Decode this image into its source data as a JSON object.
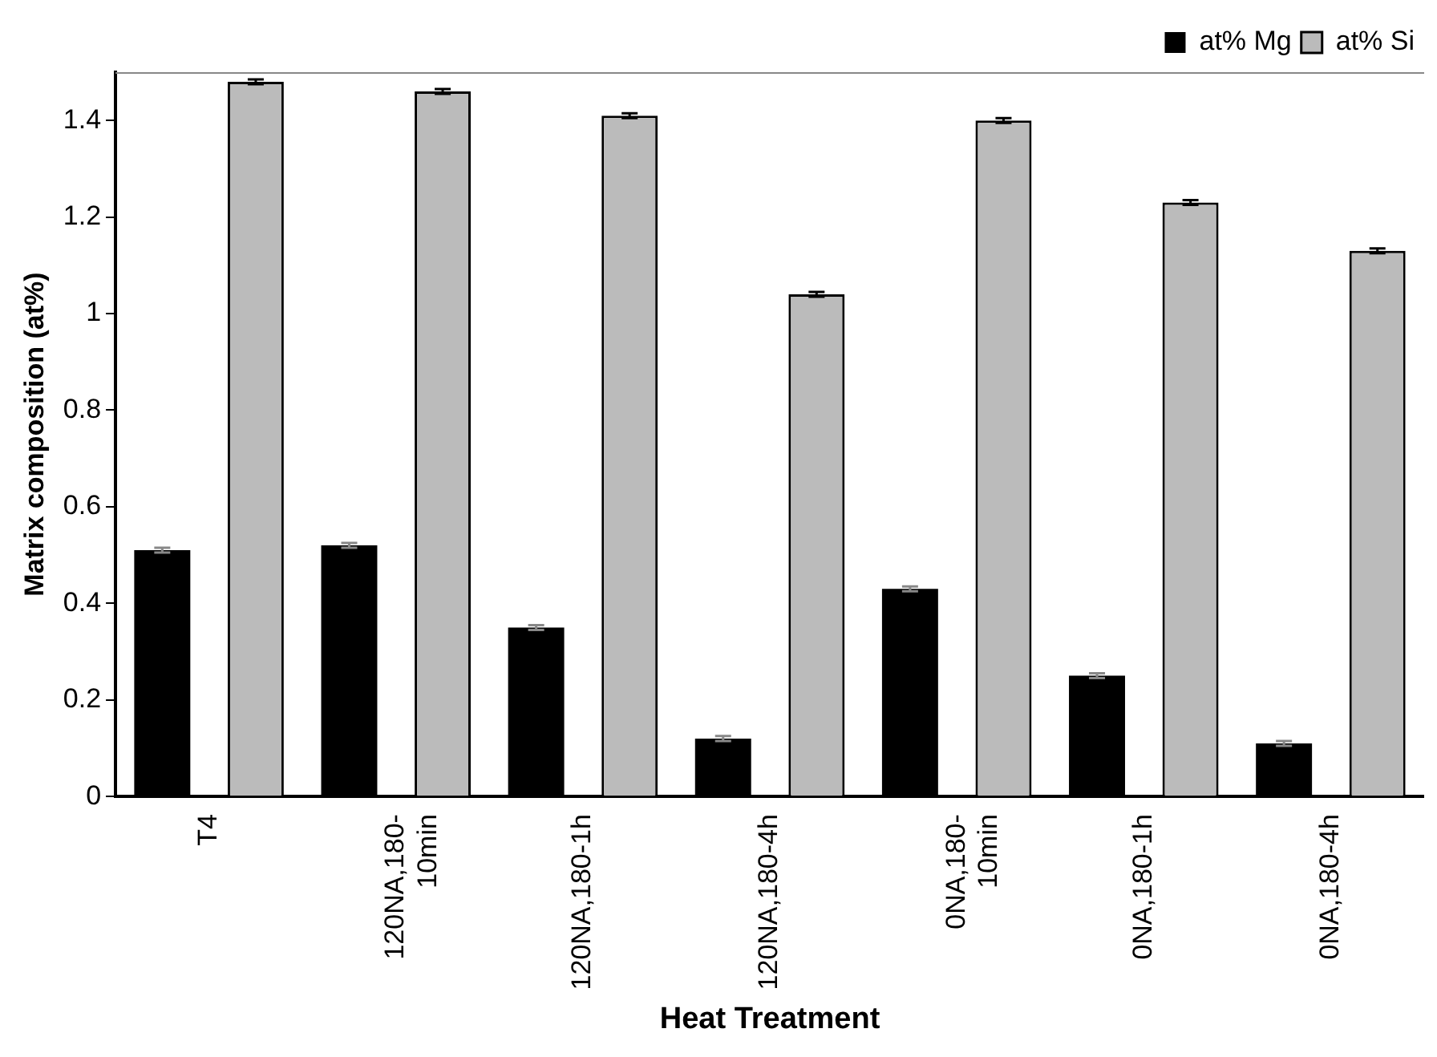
{
  "chart_data": {
    "type": "bar",
    "xlabel": "Heat Treatment",
    "ylabel": "Matrix composition (at%)",
    "categories": [
      "T4",
      "120NA,180-10min",
      "120NA,180-1h",
      "120NA,180-4h",
      "0NA,180-10min",
      "0NA,180-1h",
      "0NA,180-4h"
    ],
    "series": [
      {
        "name": "at% Mg",
        "color": "#000000",
        "values": [
          0.51,
          0.52,
          0.35,
          0.12,
          0.43,
          0.25,
          0.11
        ],
        "errors": [
          0.005,
          0.005,
          0.005,
          0.005,
          0.005,
          0.005,
          0.005
        ]
      },
      {
        "name": "at% Si",
        "color": "#bbbbbb",
        "values": [
          1.48,
          1.46,
          1.41,
          1.04,
          1.4,
          1.23,
          1.13
        ],
        "errors": [
          0.005,
          0.005,
          0.005,
          0.005,
          0.005,
          0.005,
          0.005
        ]
      }
    ],
    "ylim": [
      0,
      1.5
    ],
    "yticks": [
      0,
      0.2,
      0.4,
      0.6,
      0.8,
      1,
      1.2,
      1.4
    ],
    "grid": false,
    "legend": "top right"
  }
}
